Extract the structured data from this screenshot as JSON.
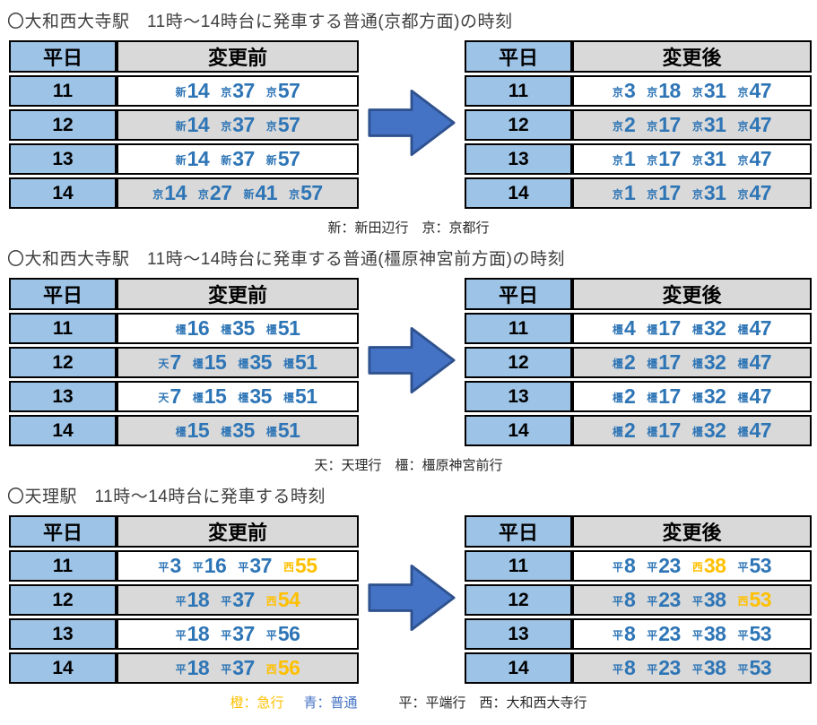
{
  "colors": {
    "header_blue": "#9DC3E6",
    "header_gray": "#D9D9D9",
    "row_gray": "#D9D9D9",
    "time_blue": "#2E75B6",
    "time_orange": "#FFC000",
    "legend_orange": "#FFC000",
    "legend_blue": "#4472C4",
    "arrow_fill": "#4472C4",
    "arrow_stroke": "#2F528F"
  },
  "sections": [
    {
      "title": "〇大和西大寺駅　11時〜14時台に発車する普通(京都方面)の時刻",
      "before": {
        "day_header": "平日",
        "change_header": "変更前",
        "rows": [
          {
            "hour": "11",
            "times": [
              {
                "prefix": "新",
                "minute": "14",
                "color": "blue"
              },
              {
                "prefix": "京",
                "minute": "37",
                "color": "blue"
              },
              {
                "prefix": "京",
                "minute": "57",
                "color": "blue"
              }
            ]
          },
          {
            "hour": "12",
            "times": [
              {
                "prefix": "新",
                "minute": "14",
                "color": "blue"
              },
              {
                "prefix": "京",
                "minute": "37",
                "color": "blue"
              },
              {
                "prefix": "京",
                "minute": "57",
                "color": "blue"
              }
            ]
          },
          {
            "hour": "13",
            "times": [
              {
                "prefix": "新",
                "minute": "14",
                "color": "blue"
              },
              {
                "prefix": "新",
                "minute": "37",
                "color": "blue"
              },
              {
                "prefix": "新",
                "minute": "57",
                "color": "blue"
              }
            ]
          },
          {
            "hour": "14",
            "times": [
              {
                "prefix": "京",
                "minute": "14",
                "color": "blue"
              },
              {
                "prefix": "京",
                "minute": "27",
                "color": "blue"
              },
              {
                "prefix": "新",
                "minute": "41",
                "color": "blue"
              },
              {
                "prefix": "京",
                "minute": "57",
                "color": "blue"
              }
            ]
          }
        ]
      },
      "after": {
        "day_header": "平日",
        "change_header": "変更後",
        "rows": [
          {
            "hour": "11",
            "times": [
              {
                "prefix": "京",
                "minute": "3",
                "color": "blue"
              },
              {
                "prefix": "京",
                "minute": "18",
                "color": "blue"
              },
              {
                "prefix": "京",
                "minute": "31",
                "color": "blue"
              },
              {
                "prefix": "京",
                "minute": "47",
                "color": "blue"
              }
            ]
          },
          {
            "hour": "12",
            "times": [
              {
                "prefix": "京",
                "minute": "2",
                "color": "blue"
              },
              {
                "prefix": "京",
                "minute": "17",
                "color": "blue"
              },
              {
                "prefix": "京",
                "minute": "31",
                "color": "blue"
              },
              {
                "prefix": "京",
                "minute": "47",
                "color": "blue"
              }
            ]
          },
          {
            "hour": "13",
            "times": [
              {
                "prefix": "京",
                "minute": "1",
                "color": "blue"
              },
              {
                "prefix": "京",
                "minute": "17",
                "color": "blue"
              },
              {
                "prefix": "京",
                "minute": "31",
                "color": "blue"
              },
              {
                "prefix": "京",
                "minute": "47",
                "color": "blue"
              }
            ]
          },
          {
            "hour": "14",
            "times": [
              {
                "prefix": "京",
                "minute": "1",
                "color": "blue"
              },
              {
                "prefix": "京",
                "minute": "17",
                "color": "blue"
              },
              {
                "prefix": "京",
                "minute": "31",
                "color": "blue"
              },
              {
                "prefix": "京",
                "minute": "47",
                "color": "blue"
              }
            ]
          }
        ]
      },
      "legend_segments": [
        {
          "text": "新：新田辺行　京：京都行",
          "color": "black",
          "wide_gap": false
        }
      ]
    },
    {
      "title": "〇大和西大寺駅　11時〜14時台に発車する普通(橿原神宮前方面)の時刻",
      "before": {
        "day_header": "平日",
        "change_header": "変更前",
        "rows": [
          {
            "hour": "11",
            "times": [
              {
                "prefix": "橿",
                "minute": "16",
                "color": "blue"
              },
              {
                "prefix": "橿",
                "minute": "35",
                "color": "blue"
              },
              {
                "prefix": "橿",
                "minute": "51",
                "color": "blue"
              }
            ]
          },
          {
            "hour": "12",
            "times": [
              {
                "prefix": "天",
                "minute": "7",
                "color": "blue"
              },
              {
                "prefix": "橿",
                "minute": "15",
                "color": "blue"
              },
              {
                "prefix": "橿",
                "minute": "35",
                "color": "blue"
              },
              {
                "prefix": "橿",
                "minute": "51",
                "color": "blue"
              }
            ]
          },
          {
            "hour": "13",
            "times": [
              {
                "prefix": "天",
                "minute": "7",
                "color": "blue"
              },
              {
                "prefix": "橿",
                "minute": "15",
                "color": "blue"
              },
              {
                "prefix": "橿",
                "minute": "35",
                "color": "blue"
              },
              {
                "prefix": "橿",
                "minute": "51",
                "color": "blue"
              }
            ]
          },
          {
            "hour": "14",
            "times": [
              {
                "prefix": "橿",
                "minute": "15",
                "color": "blue"
              },
              {
                "prefix": "橿",
                "minute": "35",
                "color": "blue"
              },
              {
                "prefix": "橿",
                "minute": "51",
                "color": "blue"
              }
            ]
          }
        ]
      },
      "after": {
        "day_header": "平日",
        "change_header": "変更後",
        "rows": [
          {
            "hour": "11",
            "times": [
              {
                "prefix": "橿",
                "minute": "4",
                "color": "blue"
              },
              {
                "prefix": "橿",
                "minute": "17",
                "color": "blue"
              },
              {
                "prefix": "橿",
                "minute": "32",
                "color": "blue"
              },
              {
                "prefix": "橿",
                "minute": "47",
                "color": "blue"
              }
            ]
          },
          {
            "hour": "12",
            "times": [
              {
                "prefix": "橿",
                "minute": "2",
                "color": "blue"
              },
              {
                "prefix": "橿",
                "minute": "17",
                "color": "blue"
              },
              {
                "prefix": "橿",
                "minute": "32",
                "color": "blue"
              },
              {
                "prefix": "橿",
                "minute": "47",
                "color": "blue"
              }
            ]
          },
          {
            "hour": "13",
            "times": [
              {
                "prefix": "橿",
                "minute": "2",
                "color": "blue"
              },
              {
                "prefix": "橿",
                "minute": "17",
                "color": "blue"
              },
              {
                "prefix": "橿",
                "minute": "32",
                "color": "blue"
              },
              {
                "prefix": "橿",
                "minute": "47",
                "color": "blue"
              }
            ]
          },
          {
            "hour": "14",
            "times": [
              {
                "prefix": "橿",
                "minute": "2",
                "color": "blue"
              },
              {
                "prefix": "橿",
                "minute": "17",
                "color": "blue"
              },
              {
                "prefix": "橿",
                "minute": "32",
                "color": "blue"
              },
              {
                "prefix": "橿",
                "minute": "47",
                "color": "blue"
              }
            ]
          }
        ]
      },
      "legend_segments": [
        {
          "text": "天：天理行　橿：橿原神宮前行",
          "color": "black",
          "wide_gap": false
        }
      ]
    },
    {
      "title": "〇天理駅　11時〜14時台に発車する時刻",
      "before": {
        "day_header": "平日",
        "change_header": "変更前",
        "rows": [
          {
            "hour": "11",
            "times": [
              {
                "prefix": "平",
                "minute": "3",
                "color": "blue"
              },
              {
                "prefix": "平",
                "minute": "16",
                "color": "blue"
              },
              {
                "prefix": "平",
                "minute": "37",
                "color": "blue"
              },
              {
                "prefix": "西",
                "minute": "55",
                "color": "orange"
              }
            ]
          },
          {
            "hour": "12",
            "times": [
              {
                "prefix": "平",
                "minute": "18",
                "color": "blue"
              },
              {
                "prefix": "平",
                "minute": "37",
                "color": "blue"
              },
              {
                "prefix": "西",
                "minute": "54",
                "color": "orange"
              }
            ]
          },
          {
            "hour": "13",
            "times": [
              {
                "prefix": "平",
                "minute": "18",
                "color": "blue"
              },
              {
                "prefix": "平",
                "minute": "37",
                "color": "blue"
              },
              {
                "prefix": "平",
                "minute": "56",
                "color": "blue"
              }
            ]
          },
          {
            "hour": "14",
            "times": [
              {
                "prefix": "平",
                "minute": "18",
                "color": "blue"
              },
              {
                "prefix": "平",
                "minute": "37",
                "color": "blue"
              },
              {
                "prefix": "西",
                "minute": "56",
                "color": "orange"
              }
            ]
          }
        ]
      },
      "after": {
        "day_header": "平日",
        "change_header": "変更後",
        "rows": [
          {
            "hour": "11",
            "times": [
              {
                "prefix": "平",
                "minute": "8",
                "color": "blue"
              },
              {
                "prefix": "平",
                "minute": "23",
                "color": "blue"
              },
              {
                "prefix": "西",
                "minute": "38",
                "color": "orange"
              },
              {
                "prefix": "平",
                "minute": "53",
                "color": "blue"
              }
            ]
          },
          {
            "hour": "12",
            "times": [
              {
                "prefix": "平",
                "minute": "8",
                "color": "blue"
              },
              {
                "prefix": "平",
                "minute": "23",
                "color": "blue"
              },
              {
                "prefix": "平",
                "minute": "38",
                "color": "blue"
              },
              {
                "prefix": "西",
                "minute": "53",
                "color": "orange"
              }
            ]
          },
          {
            "hour": "13",
            "times": [
              {
                "prefix": "平",
                "minute": "8",
                "color": "blue"
              },
              {
                "prefix": "平",
                "minute": "23",
                "color": "blue"
              },
              {
                "prefix": "平",
                "minute": "38",
                "color": "blue"
              },
              {
                "prefix": "平",
                "minute": "53",
                "color": "blue"
              }
            ]
          },
          {
            "hour": "14",
            "times": [
              {
                "prefix": "平",
                "minute": "8",
                "color": "blue"
              },
              {
                "prefix": "平",
                "minute": "23",
                "color": "blue"
              },
              {
                "prefix": "平",
                "minute": "38",
                "color": "blue"
              },
              {
                "prefix": "平",
                "minute": "53",
                "color": "blue"
              }
            ]
          }
        ]
      },
      "legend_segments": [
        {
          "text": "橙：急行",
          "color": "orange",
          "wide_gap": false
        },
        {
          "text": "青：普通",
          "color": "blue",
          "wide_gap": false
        },
        {
          "text": "平：平端行　西：大和西大寺行",
          "color": "black",
          "wide_gap": true
        }
      ]
    }
  ]
}
